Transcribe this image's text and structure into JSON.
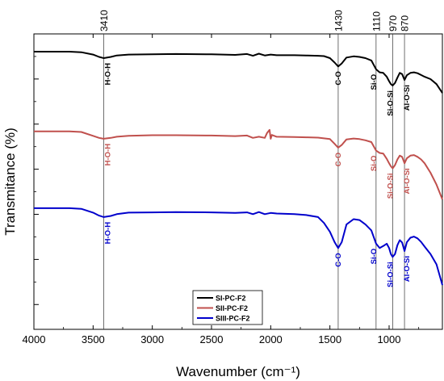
{
  "chart_data": {
    "type": "line",
    "xlabel": "Wavenumber (cm⁻¹)",
    "ylabel": "Transmitance (%)",
    "xlim": [
      4000,
      550
    ],
    "x_ticks": [
      "4000",
      "3500",
      "3000",
      "2500",
      "2000",
      "1500",
      "1000"
    ],
    "y_ticks_labeled": false,
    "grid": false,
    "legend_position": "bottom-right",
    "reference_lines": [
      {
        "x": 3410,
        "label": "3410"
      },
      {
        "x": 1430,
        "label": "1430"
      },
      {
        "x": 1110,
        "label": "1110"
      },
      {
        "x": 970,
        "label": "970"
      },
      {
        "x": 870,
        "label": "870"
      }
    ],
    "series": [
      {
        "name": "SI-PC-F2",
        "color": "#000000",
        "x": [
          4000,
          3700,
          3600,
          3500,
          3450,
          3410,
          3350,
          3300,
          3200,
          3000,
          2800,
          2500,
          2300,
          2200,
          2150,
          2100,
          2050,
          2000,
          1950,
          1800,
          1700,
          1600,
          1550,
          1500,
          1460,
          1430,
          1400,
          1360,
          1300,
          1250,
          1200,
          1150,
          1110,
          1080,
          1050,
          1020,
          1000,
          985,
          970,
          950,
          930,
          910,
          890,
          870,
          850,
          820,
          790,
          760,
          730,
          700,
          650,
          600,
          550
        ],
        "y": [
          6,
          6,
          6.2,
          7,
          7.8,
          8.2,
          7.8,
          7.3,
          7,
          6.9,
          6.8,
          6.9,
          7.1,
          6.8,
          7.4,
          6.7,
          7.3,
          7,
          7.2,
          7.2,
          7.3,
          7.4,
          7.5,
          8.2,
          9.7,
          11,
          10,
          8,
          7.6,
          7.8,
          8.2,
          9,
          12,
          13,
          13.2,
          14.5,
          16,
          17,
          17.5,
          16.6,
          14.8,
          13.2,
          13.6,
          15.6,
          14,
          13.2,
          13,
          13.3,
          13.9,
          14.5,
          15.3,
          17,
          20
        ]
      },
      {
        "name": "SII-PC-F2",
        "color": "#c0504d",
        "x": [
          4000,
          3700,
          3600,
          3500,
          3450,
          3410,
          3350,
          3300,
          3200,
          3000,
          2800,
          2500,
          2300,
          2200,
          2150,
          2100,
          2050,
          2030,
          2010,
          2000,
          1990,
          1950,
          1800,
          1700,
          1600,
          1500,
          1460,
          1430,
          1400,
          1360,
          1300,
          1250,
          1200,
          1150,
          1110,
          1080,
          1050,
          1020,
          1000,
          985,
          970,
          950,
          930,
          910,
          890,
          870,
          850,
          820,
          790,
          760,
          730,
          700,
          650,
          600,
          550
        ],
        "y": [
          33,
          33,
          33.2,
          34.5,
          35.2,
          35.5,
          35.2,
          34.8,
          34.5,
          34.3,
          34.3,
          34.4,
          34.6,
          34.4,
          35.2,
          34.8,
          35.2,
          33.5,
          32.5,
          35.5,
          34.2,
          34.8,
          34.9,
          35,
          35.1,
          35.6,
          37.2,
          38.5,
          37.6,
          35.7,
          35.4,
          35.6,
          36,
          36.6,
          39.5,
          40.3,
          40.5,
          42.3,
          43.8,
          44.8,
          45.5,
          44.4,
          42.5,
          41.2,
          41.6,
          43.8,
          42.1,
          41.2,
          41,
          41.6,
          42.5,
          43.8,
          47,
          51,
          56
        ]
      },
      {
        "name": "SIII-PC-F2",
        "color": "#0000cc",
        "x": [
          4000,
          3700,
          3600,
          3500,
          3450,
          3410,
          3350,
          3300,
          3200,
          3000,
          2800,
          2500,
          2300,
          2200,
          2150,
          2100,
          2050,
          2000,
          1950,
          1800,
          1700,
          1600,
          1550,
          1500,
          1460,
          1430,
          1400,
          1360,
          1300,
          1250,
          1200,
          1150,
          1110,
          1080,
          1050,
          1020,
          1000,
          985,
          970,
          950,
          930,
          910,
          890,
          870,
          850,
          820,
          790,
          760,
          730,
          700,
          650,
          600,
          550
        ],
        "y": [
          59,
          59,
          59.2,
          60.5,
          61.5,
          62,
          61.6,
          61,
          60.5,
          60.4,
          60.3,
          60.4,
          60.6,
          60.4,
          61,
          60.3,
          61,
          60.6,
          60.8,
          61,
          61.3,
          62,
          64,
          67,
          70.5,
          72.5,
          70.5,
          64.5,
          62.7,
          63,
          64.5,
          66.5,
          71,
          72.5,
          71.8,
          71,
          72.5,
          74.5,
          75.5,
          74.5,
          71.5,
          69.8,
          70.6,
          73.5,
          70.5,
          69,
          68.6,
          69.2,
          70.4,
          72,
          74.5,
          78,
          85
        ]
      }
    ],
    "annotations": [
      {
        "text": "H-O-H",
        "series": 0,
        "x": 3410
      },
      {
        "text": "C-O",
        "series": 0,
        "x": 1430
      },
      {
        "text": "Si-O",
        "series": 0,
        "x": 1110
      },
      {
        "text": "Si-O-Si",
        "series": 0,
        "x": 970
      },
      {
        "text": "Al-O-Si",
        "series": 0,
        "x": 870
      },
      {
        "text": "H-O-H",
        "series": 1,
        "x": 3410
      },
      {
        "text": "C-O",
        "series": 1,
        "x": 1430
      },
      {
        "text": "Si-O",
        "series": 1,
        "x": 1110
      },
      {
        "text": "Si-O-Si",
        "series": 1,
        "x": 970
      },
      {
        "text": "Al-O-Si",
        "series": 1,
        "x": 870
      },
      {
        "text": "H-O-H",
        "series": 2,
        "x": 3410
      },
      {
        "text": "C-O",
        "series": 2,
        "x": 1430
      },
      {
        "text": "Si-O",
        "series": 2,
        "x": 1110
      },
      {
        "text": "Si-O-Si",
        "series": 2,
        "x": 970
      },
      {
        "text": "Al-O-Si",
        "series": 2,
        "x": 870
      }
    ]
  }
}
